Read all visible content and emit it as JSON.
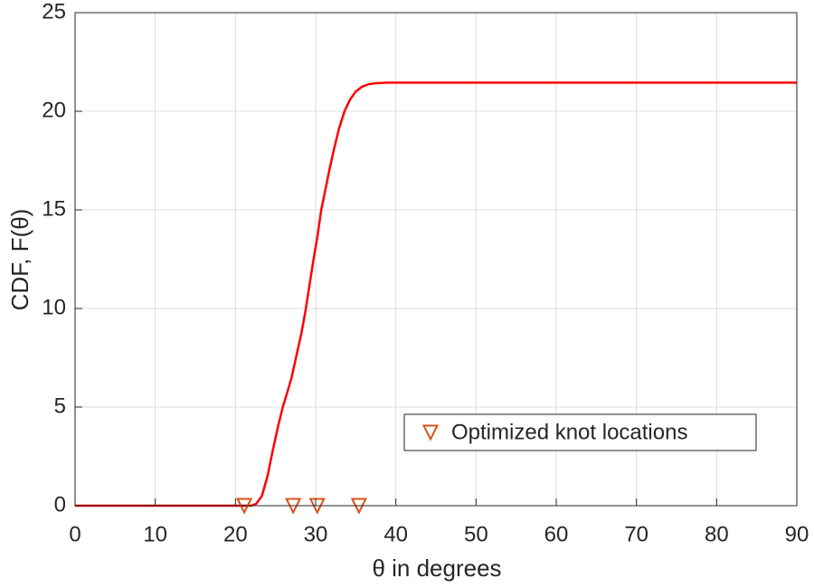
{
  "chart_data": {
    "type": "line",
    "xlabel": "θ in degrees",
    "ylabel": "CDF, F(θ)",
    "x": [
      0,
      20,
      22,
      22.6,
      23.3,
      24.0,
      24.6,
      25.3,
      25.9,
      26.5,
      27.0,
      27.6,
      28.2,
      28.7,
      29.2,
      29.7,
      30.2,
      30.7,
      31.2,
      31.7,
      32.3,
      32.9,
      33.6,
      34.3,
      35.0,
      35.8,
      36.6,
      37.5,
      39.0,
      45,
      60,
      75,
      90
    ],
    "series": [
      {
        "color": "#ff0000",
        "values": [
          0,
          0,
          0,
          0.1,
          0.5,
          1.5,
          2.7,
          4.0,
          5.0,
          5.8,
          6.5,
          7.6,
          8.7,
          9.8,
          11.1,
          12.4,
          13.6,
          15.0,
          16.0,
          17.0,
          18.1,
          19.1,
          20.0,
          20.6,
          21.0,
          21.25,
          21.37,
          21.42,
          21.45,
          21.45,
          21.45,
          21.45,
          21.45
        ]
      },
      {
        "name": "Optimized knot locations",
        "color": "#d95319",
        "marker": "triangle-down",
        "x": [
          21.1,
          27.2,
          30.2,
          35.4
        ],
        "values": [
          0,
          0,
          0,
          0
        ]
      }
    ],
    "xlim": [
      0,
      90
    ],
    "xticks": [
      0,
      10,
      20,
      30,
      40,
      50,
      60,
      70,
      80,
      90
    ],
    "ylim": [
      0,
      25
    ],
    "yticks": [
      0,
      5,
      10,
      15,
      20,
      25
    ],
    "grid": true,
    "legend": "southeast"
  }
}
